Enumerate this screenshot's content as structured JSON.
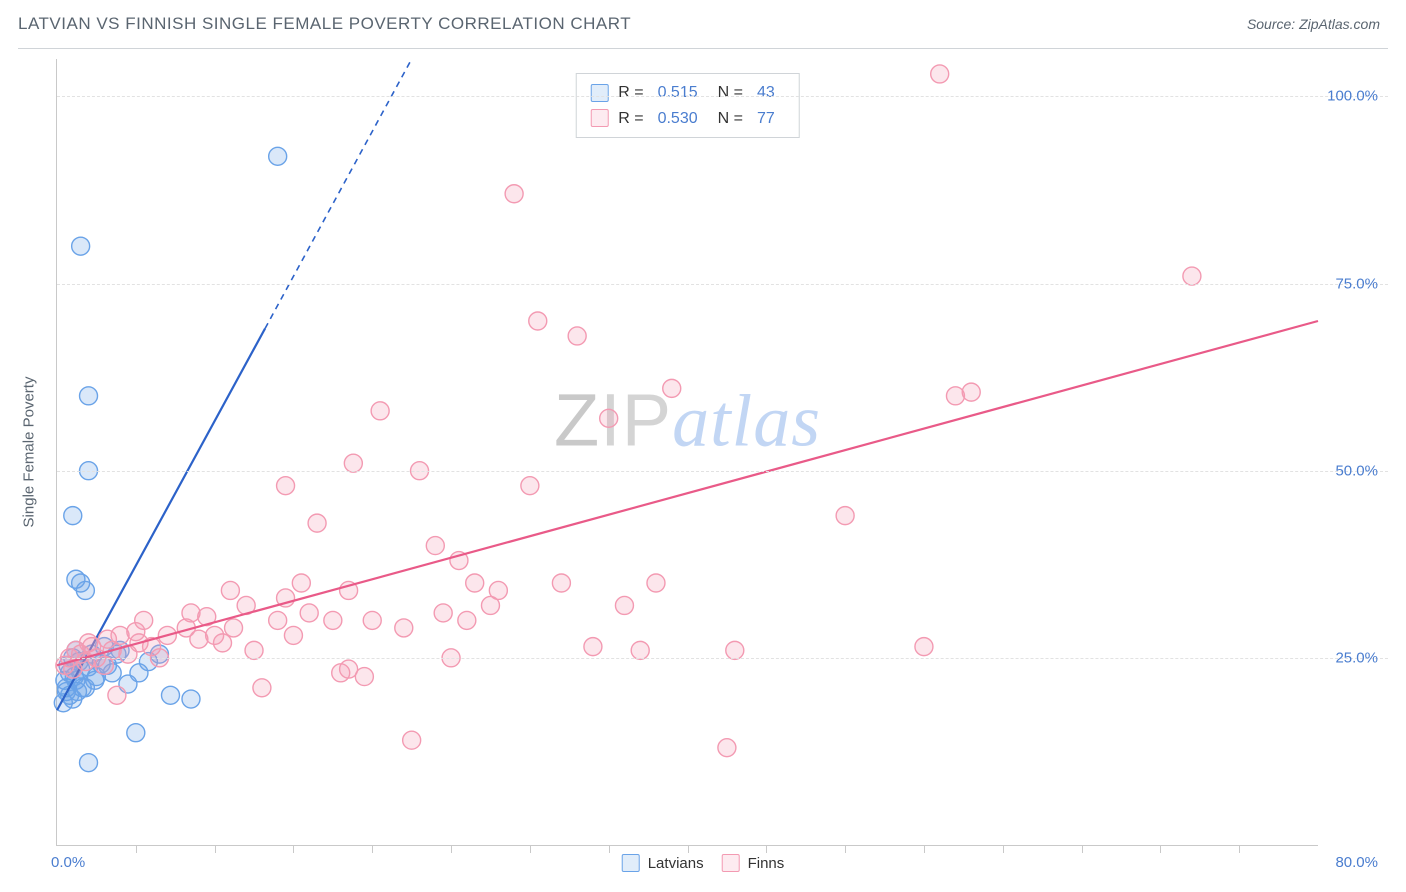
{
  "header": {
    "title": "LATVIAN VS FINNISH SINGLE FEMALE POVERTY CORRELATION CHART",
    "source_prefix": "Source: ",
    "source_name": "ZipAtlas.com"
  },
  "watermark": {
    "part1": "ZIP",
    "part2": "atlas"
  },
  "chart": {
    "type": "scatter",
    "background_color": "#ffffff",
    "grid_color": "#e2e2e2",
    "axis_color": "#c9c9c9",
    "tick_label_color": "#4a7dcf",
    "text_color": "#5a6570",
    "ylabel": "Single Female Poverty",
    "label_fontsize": 15,
    "xlim": [
      0,
      80
    ],
    "ylim": [
      0,
      105
    ],
    "y_ticks": [
      25,
      50,
      75,
      100
    ],
    "y_tick_labels": [
      "25.0%",
      "50.0%",
      "75.0%",
      "100.0%"
    ],
    "x_minor_ticks": [
      5,
      10,
      15,
      20,
      25,
      30,
      35,
      40,
      45,
      50,
      55,
      60,
      65,
      70,
      75
    ],
    "x_origin_label": "0.0%",
    "x_max_label": "80.0%",
    "marker_radius": 9,
    "marker_fill_opacity": 0.25,
    "marker_stroke_width": 1.4,
    "series": [
      {
        "key": "latvians",
        "label": "Latvians",
        "color": "#6aa3e8",
        "trend_color": "#2c62c9",
        "R": "0.515",
        "N": "43",
        "trend": {
          "x1": 0,
          "y1": 18,
          "x2": 13.2,
          "y2": 69,
          "dash_x2": 22.5,
          "dash_y2": 105
        },
        "points": [
          [
            0.5,
            22
          ],
          [
            0.6,
            20.5
          ],
          [
            0.7,
            24
          ],
          [
            0.8,
            23
          ],
          [
            1.0,
            25
          ],
          [
            1.1,
            22.5
          ],
          [
            1.2,
            26
          ],
          [
            1.4,
            24.5
          ],
          [
            1.5,
            23.5
          ],
          [
            0.4,
            19
          ],
          [
            1.0,
            19.5
          ],
          [
            1.3,
            20.5
          ],
          [
            1.8,
            21
          ],
          [
            2.0,
            23.8
          ],
          [
            2.2,
            25.5
          ],
          [
            2.5,
            22.5
          ],
          [
            2.8,
            24.2
          ],
          [
            3.0,
            26.5
          ],
          [
            3.2,
            24
          ],
          [
            3.5,
            23
          ],
          [
            4.0,
            26
          ],
          [
            4.5,
            21.5
          ],
          [
            5.0,
            15
          ],
          [
            5.2,
            23
          ],
          [
            5.8,
            24.5
          ],
          [
            6.5,
            25.5
          ],
          [
            7.2,
            20
          ],
          [
            8.5,
            19.5
          ],
          [
            2.0,
            11
          ],
          [
            1.0,
            44
          ],
          [
            1.5,
            35
          ],
          [
            1.2,
            35.5
          ],
          [
            1.8,
            34
          ],
          [
            2.0,
            50
          ],
          [
            2.0,
            60
          ],
          [
            1.5,
            80
          ],
          [
            14,
            92
          ],
          [
            0.6,
            21
          ],
          [
            0.8,
            20
          ],
          [
            1.2,
            22
          ],
          [
            1.6,
            21
          ],
          [
            2.4,
            22
          ],
          [
            3.8,
            25.5
          ]
        ]
      },
      {
        "key": "finns",
        "label": "Finns",
        "color": "#f39ab2",
        "trend_color": "#e95a88",
        "R": "0.530",
        "N": "77",
        "trend": {
          "x1": 0,
          "y1": 24,
          "x2": 80,
          "y2": 70
        },
        "points": [
          [
            0.5,
            24
          ],
          [
            0.8,
            25
          ],
          [
            1.0,
            23.5
          ],
          [
            1.2,
            26
          ],
          [
            1.5,
            25.5
          ],
          [
            1.8,
            24.5
          ],
          [
            2.0,
            27
          ],
          [
            2.2,
            26.5
          ],
          [
            2.5,
            25
          ],
          [
            3.0,
            24
          ],
          [
            3.2,
            27.5
          ],
          [
            3.5,
            26
          ],
          [
            4.0,
            28
          ],
          [
            4.5,
            25.5
          ],
          [
            5.0,
            28.5
          ],
          [
            5.2,
            27
          ],
          [
            5.5,
            30
          ],
          [
            6.0,
            26.5
          ],
          [
            6.5,
            25
          ],
          [
            7.0,
            28
          ],
          [
            8.2,
            29
          ],
          [
            8.5,
            31
          ],
          [
            9.0,
            27.5
          ],
          [
            9.5,
            30.5
          ],
          [
            10.0,
            28
          ],
          [
            10.5,
            27
          ],
          [
            11.0,
            34
          ],
          [
            11.2,
            29
          ],
          [
            12.0,
            32
          ],
          [
            12.5,
            26
          ],
          [
            13.0,
            21
          ],
          [
            14.0,
            30
          ],
          [
            14.5,
            33
          ],
          [
            14.5,
            48
          ],
          [
            15.0,
            28
          ],
          [
            15.5,
            35
          ],
          [
            16.0,
            31
          ],
          [
            16.5,
            43
          ],
          [
            17.5,
            30
          ],
          [
            18.0,
            23
          ],
          [
            18.5,
            23.5
          ],
          [
            18.5,
            34
          ],
          [
            18.8,
            51
          ],
          [
            19.5,
            22.5
          ],
          [
            20.0,
            30
          ],
          [
            20.5,
            58
          ],
          [
            22.0,
            29
          ],
          [
            22.5,
            14
          ],
          [
            23.0,
            50
          ],
          [
            24.0,
            40
          ],
          [
            24.5,
            31
          ],
          [
            25.0,
            25
          ],
          [
            25.5,
            38
          ],
          [
            26.0,
            30
          ],
          [
            26.5,
            35
          ],
          [
            27.5,
            32
          ],
          [
            28.0,
            34
          ],
          [
            29.0,
            87
          ],
          [
            30.0,
            48
          ],
          [
            30.5,
            70
          ],
          [
            32.0,
            35
          ],
          [
            33.0,
            68
          ],
          [
            34.0,
            26.5
          ],
          [
            35.0,
            57
          ],
          [
            36.0,
            32
          ],
          [
            37.0,
            26
          ],
          [
            38.0,
            35
          ],
          [
            39.0,
            61
          ],
          [
            42.5,
            13
          ],
          [
            43.0,
            26
          ],
          [
            50.0,
            44
          ],
          [
            55.0,
            26.5
          ],
          [
            56.0,
            103
          ],
          [
            57.0,
            60
          ],
          [
            58.0,
            60.5
          ],
          [
            72.0,
            76
          ],
          [
            3.8,
            20
          ]
        ]
      }
    ],
    "legend": {
      "R_label": "R",
      "N_label": "N",
      "eq": "="
    }
  }
}
